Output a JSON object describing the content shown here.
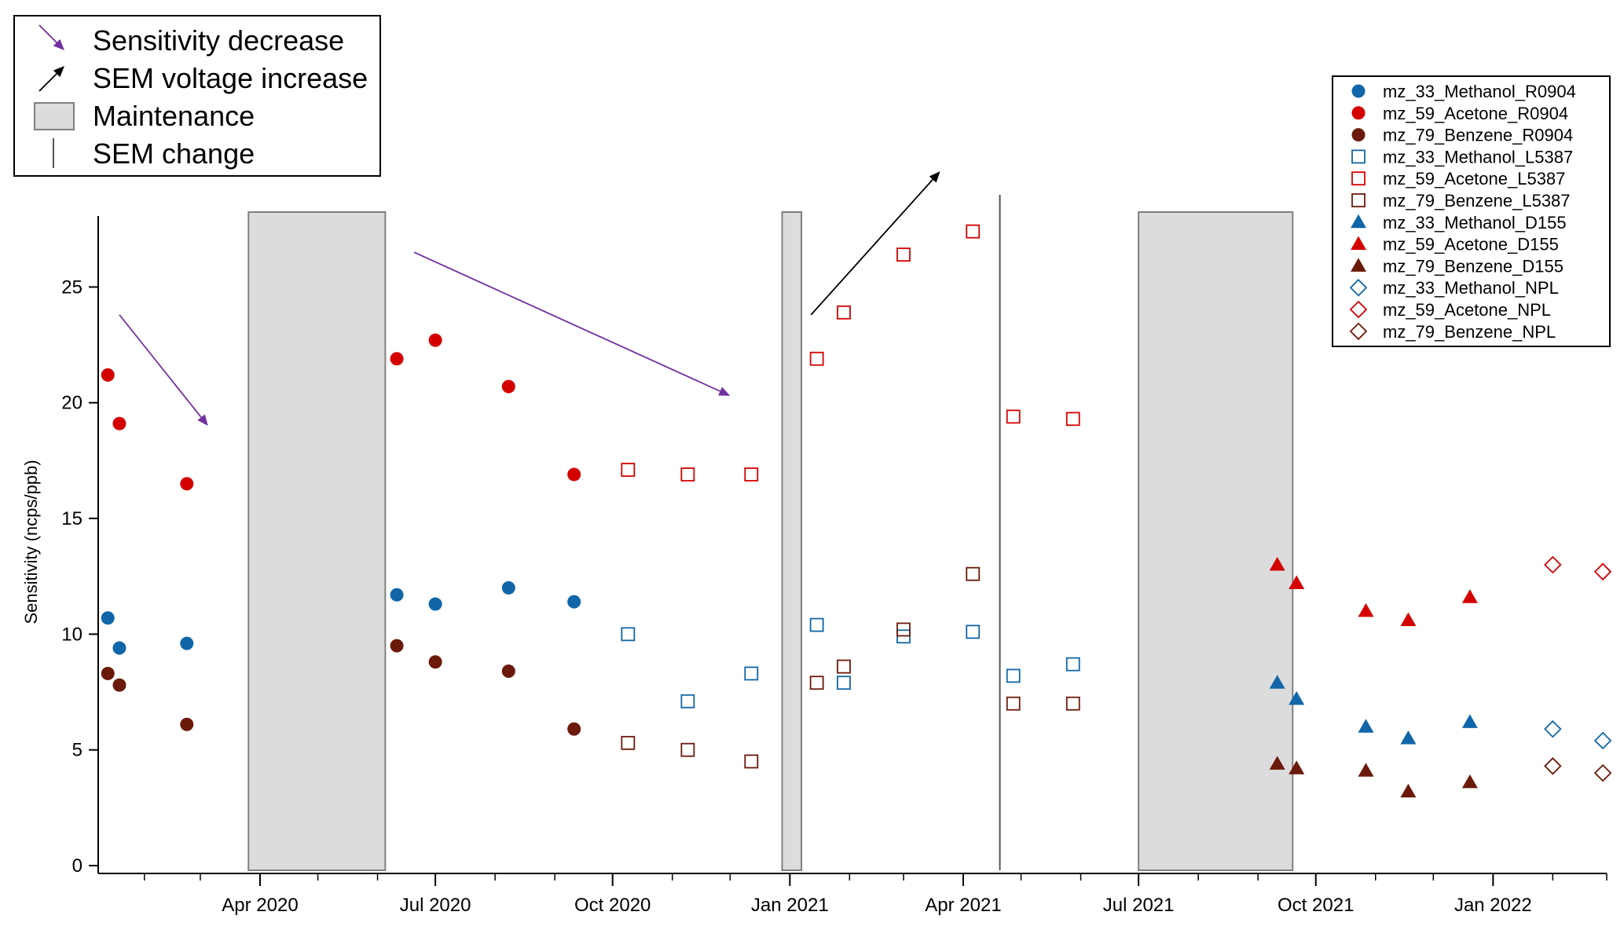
{
  "chart_data": {
    "type": "scatter",
    "title": "",
    "xlabel": "",
    "ylabel": "Sensitivity (ncps/ppb)",
    "x_type": "date",
    "xlim": [
      "2020-01-08",
      "2022-03-01"
    ],
    "ylim": [
      0,
      28
    ],
    "yticks": [
      0,
      5,
      10,
      15,
      20,
      25
    ],
    "xticks": [
      {
        "date": "2020-04-01",
        "label": "Apr 2020"
      },
      {
        "date": "2020-07-01",
        "label": "Jul 2020"
      },
      {
        "date": "2020-10-01",
        "label": "Oct 2020"
      },
      {
        "date": "2021-01-01",
        "label": "Jan 2021"
      },
      {
        "date": "2021-04-01",
        "label": "Apr 2021"
      },
      {
        "date": "2021-07-01",
        "label": "Jul 2021"
      },
      {
        "date": "2021-10-01",
        "label": "Oct 2021"
      },
      {
        "date": "2022-01-01",
        "label": "Jan 2022"
      }
    ],
    "grid": false,
    "legend_position": "top-right",
    "series": [
      {
        "name": "mz_33_Methanol_R0904",
        "marker": "circle-filled",
        "color": "#1066a8",
        "points": [
          [
            "2020-01-13",
            10.7
          ],
          [
            "2020-01-19",
            9.4
          ],
          [
            "2020-02-23",
            9.6
          ],
          [
            "2020-06-11",
            11.7
          ],
          [
            "2020-07-01",
            11.3
          ],
          [
            "2020-08-08",
            12.0
          ],
          [
            "2020-09-11",
            11.4
          ]
        ]
      },
      {
        "name": "mz_59_Acetone_R0904",
        "marker": "circle-filled",
        "color": "#d40000",
        "points": [
          [
            "2020-01-13",
            21.2
          ],
          [
            "2020-01-19",
            19.1
          ],
          [
            "2020-02-23",
            16.5
          ],
          [
            "2020-06-11",
            21.9
          ],
          [
            "2020-07-01",
            22.7
          ],
          [
            "2020-08-08",
            20.7
          ],
          [
            "2020-09-11",
            16.9
          ]
        ]
      },
      {
        "name": "mz_79_Benzene_R0904",
        "marker": "circle-filled",
        "color": "#6b1a0a",
        "points": [
          [
            "2020-01-13",
            8.3
          ],
          [
            "2020-01-19",
            7.8
          ],
          [
            "2020-02-23",
            6.1
          ],
          [
            "2020-06-11",
            9.5
          ],
          [
            "2020-07-01",
            8.8
          ],
          [
            "2020-08-08",
            8.4
          ],
          [
            "2020-09-11",
            5.9
          ]
        ]
      },
      {
        "name": "mz_33_Methanol_L5387",
        "marker": "square-open",
        "color": "#1066a8",
        "points": [
          [
            "2020-10-09",
            10.0
          ],
          [
            "2020-11-09",
            7.1
          ],
          [
            "2020-12-12",
            8.3
          ],
          [
            "2021-01-15",
            10.4
          ],
          [
            "2021-01-29",
            7.9
          ],
          [
            "2021-03-01",
            9.9
          ],
          [
            "2021-04-06",
            10.1
          ],
          [
            "2021-04-27",
            8.2
          ],
          [
            "2021-05-28",
            8.7
          ]
        ]
      },
      {
        "name": "mz_59_Acetone_L5387",
        "marker": "square-open",
        "color": "#d40000",
        "points": [
          [
            "2020-10-09",
            17.1
          ],
          [
            "2020-11-09",
            16.9
          ],
          [
            "2020-12-12",
            16.9
          ],
          [
            "2021-01-15",
            21.9
          ],
          [
            "2021-01-29",
            23.9
          ],
          [
            "2021-03-01",
            26.4
          ],
          [
            "2021-04-06",
            27.4
          ],
          [
            "2021-04-27",
            19.4
          ],
          [
            "2021-05-28",
            19.3
          ]
        ]
      },
      {
        "name": "mz_79_Benzene_L5387",
        "marker": "square-open",
        "color": "#6b1a0a",
        "points": [
          [
            "2020-10-09",
            5.3
          ],
          [
            "2020-11-09",
            5.0
          ],
          [
            "2020-12-12",
            4.5
          ],
          [
            "2021-01-15",
            7.9
          ],
          [
            "2021-01-29",
            8.6
          ],
          [
            "2021-03-01",
            10.2
          ],
          [
            "2021-04-06",
            12.6
          ],
          [
            "2021-04-27",
            7.0
          ],
          [
            "2021-05-28",
            7.0
          ]
        ]
      },
      {
        "name": "mz_33_Methanol_D155",
        "marker": "triangle-filled",
        "color": "#1066a8",
        "points": [
          [
            "2021-09-11",
            7.9
          ],
          [
            "2021-09-21",
            7.2
          ],
          [
            "2021-10-27",
            6.0
          ],
          [
            "2021-11-18",
            5.5
          ],
          [
            "2021-12-20",
            6.2
          ]
        ]
      },
      {
        "name": "mz_59_Acetone_D155",
        "marker": "triangle-filled",
        "color": "#d40000",
        "points": [
          [
            "2021-09-11",
            13.0
          ],
          [
            "2021-09-21",
            12.2
          ],
          [
            "2021-10-27",
            11.0
          ],
          [
            "2021-11-18",
            10.6
          ],
          [
            "2021-12-20",
            11.6
          ]
        ]
      },
      {
        "name": "mz_79_Benzene_D155",
        "marker": "triangle-filled",
        "color": "#6b1a0a",
        "points": [
          [
            "2021-09-11",
            4.4
          ],
          [
            "2021-09-21",
            4.2
          ],
          [
            "2021-10-27",
            4.1
          ],
          [
            "2021-11-18",
            3.2
          ],
          [
            "2021-12-20",
            3.6
          ]
        ]
      },
      {
        "name": "mz_33_Methanol_NPL",
        "marker": "diamond-open",
        "color": "#1066a8",
        "points": [
          [
            "2022-02-01",
            5.9
          ],
          [
            "2022-02-27",
            5.4
          ]
        ]
      },
      {
        "name": "mz_59_Acetone_NPL",
        "marker": "diamond-open",
        "color": "#d40000",
        "points": [
          [
            "2022-02-01",
            13.0
          ],
          [
            "2022-02-27",
            12.7
          ]
        ]
      },
      {
        "name": "mz_79_Benzene_NPL",
        "marker": "diamond-open",
        "color": "#6b1a0a",
        "points": [
          [
            "2022-02-01",
            4.3
          ],
          [
            "2022-02-27",
            4.0
          ]
        ]
      }
    ],
    "maintenance_periods": [
      [
        "2020-03-26",
        "2020-06-05"
      ],
      [
        "2020-12-28",
        "2021-01-07"
      ],
      [
        "2021-07-01",
        "2021-09-19"
      ]
    ],
    "sem_changes": [
      "2021-04-20"
    ],
    "annotations": [
      {
        "type": "sensitivity-decrease",
        "color": "#7030a0",
        "from": [
          "2020-01-19",
          23.8
        ],
        "to": [
          "2020-03-05",
          19.0
        ]
      },
      {
        "type": "sensitivity-decrease",
        "color": "#7030a0",
        "from": [
          "2020-06-20",
          26.5
        ],
        "to": [
          "2020-12-01",
          20.3
        ]
      },
      {
        "type": "sem-voltage-increase",
        "color": "#000000",
        "from": [
          "2021-01-12",
          23.8
        ],
        "to": [
          "2021-03-20",
          30.0
        ]
      }
    ],
    "key": [
      {
        "symbol": "purple-arrow",
        "label": "Sensitivity decrease"
      },
      {
        "symbol": "black-arrow",
        "label": "SEM voltage increase"
      },
      {
        "symbol": "gray-box",
        "label": "Maintenance"
      },
      {
        "symbol": "vertical-line",
        "label": "SEM change"
      }
    ]
  },
  "colors": {
    "methanol": "#1066a8",
    "acetone": "#d40000",
    "benzene": "#6b1a0a",
    "sensitivity_arrow": "#7030a0",
    "sem_arrow": "#000000",
    "maintenance_fill": "#dcdcdc",
    "maintenance_stroke": "#808080"
  }
}
